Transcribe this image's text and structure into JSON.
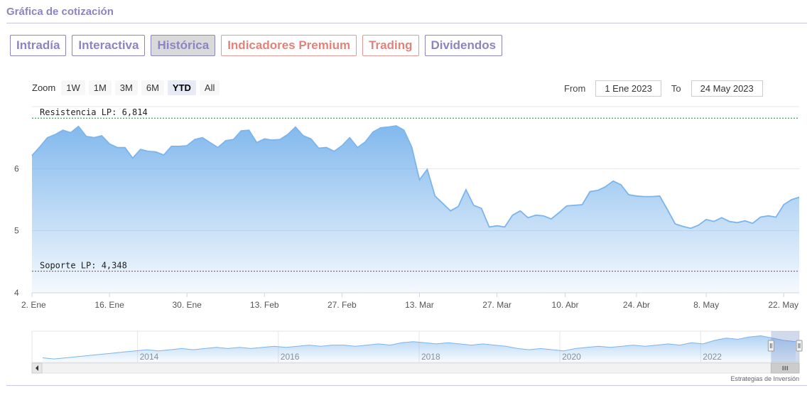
{
  "section_title": "Gráfica de cotización",
  "tabs": [
    {
      "label": "Intradía",
      "style": "normal"
    },
    {
      "label": "Interactiva",
      "style": "normal"
    },
    {
      "label": "Histórica",
      "style": "active"
    },
    {
      "label": "Indicadores Premium",
      "style": "premium"
    },
    {
      "label": "Trading",
      "style": "premium"
    },
    {
      "label": "Dividendos",
      "style": "normal"
    }
  ],
  "zoom": {
    "label": "Zoom",
    "buttons": [
      "1W",
      "1M",
      "3M",
      "6M",
      "YTD",
      "All"
    ],
    "selected": "YTD"
  },
  "range": {
    "from_label": "From",
    "from_value": "1 Ene 2023",
    "to_label": "To",
    "to_value": "24 May 2023"
  },
  "credit": "Estrategias de Inversión",
  "colors": {
    "accent": "#8b85c1",
    "premium": "#e0847b",
    "series_line": "#7cb5ec",
    "resistance": "#2e7d32",
    "support": "#c62828"
  },
  "chart_data": {
    "type": "area",
    "ylim": [
      4,
      7
    ],
    "y_ticks": [
      4,
      5,
      6
    ],
    "y_tick_labels": [
      "4",
      "5",
      "6"
    ],
    "x_tick_labels": [
      "2. Ene",
      "16. Ene",
      "30. Ene",
      "13. Feb",
      "27. Feb",
      "13. Mar",
      "27. Mar",
      "10. Abr",
      "24. Abr",
      "8. May",
      "22. May"
    ],
    "x_tick_dates": [
      "2023-01-02",
      "2023-01-16",
      "2023-01-30",
      "2023-02-13",
      "2023-02-27",
      "2023-03-13",
      "2023-03-27",
      "2023-04-10",
      "2023-04-24",
      "2023-05-08",
      "2023-05-22"
    ],
    "x_range": [
      "2023-01-02",
      "2023-05-24"
    ],
    "series": [
      {
        "dates": [
          "2023-01-02",
          "2023-01-03",
          "2023-01-04",
          "2023-01-05",
          "2023-01-06",
          "2023-01-09",
          "2023-01-10",
          "2023-01-11",
          "2023-01-12",
          "2023-01-13",
          "2023-01-16",
          "2023-01-17",
          "2023-01-18",
          "2023-01-19",
          "2023-01-20",
          "2023-01-23",
          "2023-01-24",
          "2023-01-25",
          "2023-01-26",
          "2023-01-27",
          "2023-01-30",
          "2023-01-31",
          "2023-02-01",
          "2023-02-02",
          "2023-02-03",
          "2023-02-06",
          "2023-02-07",
          "2023-02-08",
          "2023-02-09",
          "2023-02-10",
          "2023-02-13",
          "2023-02-14",
          "2023-02-15",
          "2023-02-16",
          "2023-02-17",
          "2023-02-20",
          "2023-02-21",
          "2023-02-22",
          "2023-02-23",
          "2023-02-24",
          "2023-02-27",
          "2023-02-28",
          "2023-03-01",
          "2023-03-02",
          "2023-03-03",
          "2023-03-06",
          "2023-03-07",
          "2023-03-08",
          "2023-03-09",
          "2023-03-10",
          "2023-03-13",
          "2023-03-14",
          "2023-03-15",
          "2023-03-16",
          "2023-03-17",
          "2023-03-20",
          "2023-03-21",
          "2023-03-22",
          "2023-03-23",
          "2023-03-24",
          "2023-03-27",
          "2023-03-28",
          "2023-03-29",
          "2023-03-30",
          "2023-03-31",
          "2023-04-03",
          "2023-04-04",
          "2023-04-05",
          "2023-04-06",
          "2023-04-11",
          "2023-04-12",
          "2023-04-13",
          "2023-04-14",
          "2023-04-17",
          "2023-04-18",
          "2023-04-19",
          "2023-04-20",
          "2023-04-21",
          "2023-04-24",
          "2023-04-25",
          "2023-04-26",
          "2023-04-27",
          "2023-04-28",
          "2023-05-02",
          "2023-05-03",
          "2023-05-04",
          "2023-05-05",
          "2023-05-08",
          "2023-05-09",
          "2023-05-10",
          "2023-05-11",
          "2023-05-12",
          "2023-05-15",
          "2023-05-16",
          "2023-05-17",
          "2023-05-18",
          "2023-05-19",
          "2023-05-22",
          "2023-05-23",
          "2023-05-24"
        ],
        "values": [
          6.21,
          6.35,
          6.5,
          6.55,
          6.62,
          6.58,
          6.68,
          6.52,
          6.5,
          6.53,
          6.4,
          6.34,
          6.34,
          6.17,
          6.31,
          6.28,
          6.27,
          6.22,
          6.36,
          6.36,
          6.37,
          6.47,
          6.5,
          6.42,
          6.34,
          6.45,
          6.47,
          6.61,
          6.62,
          6.42,
          6.48,
          6.46,
          6.47,
          6.55,
          6.67,
          6.53,
          6.48,
          6.33,
          6.34,
          6.28,
          6.37,
          6.5,
          6.34,
          6.43,
          6.59,
          6.66,
          6.67,
          6.69,
          6.62,
          6.35,
          5.82,
          5.99,
          5.56,
          5.44,
          5.32,
          5.39,
          5.66,
          5.41,
          5.36,
          5.06,
          5.08,
          5.06,
          5.25,
          5.32,
          5.21,
          5.25,
          5.24,
          5.19,
          5.29,
          5.4,
          5.41,
          5.42,
          5.63,
          5.65,
          5.71,
          5.8,
          5.74,
          5.58,
          5.56,
          5.55,
          5.55,
          5.56,
          5.34,
          5.11,
          5.07,
          5.04,
          5.09,
          5.18,
          5.15,
          5.21,
          5.15,
          5.13,
          5.16,
          5.12,
          5.22,
          5.24,
          5.22,
          5.42,
          5.5,
          5.54
        ]
      }
    ],
    "reference_lines": [
      {
        "label": "Resistencia LP: 6,814",
        "value": 6.814,
        "color": "#2e7d32"
      },
      {
        "label": "Soporte LP: 4,348",
        "value": 4.348,
        "color": "#c62828"
      }
    ],
    "navigator": {
      "tick_labels": [
        "2014",
        "2016",
        "2018",
        "2020",
        "2022"
      ],
      "tick_years": [
        2014,
        2016,
        2018,
        2020,
        2022
      ],
      "x_range": [
        2012.5,
        2023.4
      ],
      "selected_range": [
        2023.0,
        2023.4
      ],
      "values": [
        3.9,
        3.8,
        3.9,
        4.0,
        4.1,
        4.2,
        4.3,
        4.4,
        4.5,
        4.6,
        4.5,
        4.6,
        4.7,
        4.6,
        4.7,
        4.8,
        4.7,
        4.8,
        4.7,
        4.8,
        4.9,
        4.8,
        4.9,
        5.0,
        4.9,
        5.0,
        5.0,
        4.9,
        5.0,
        5.1,
        5.0,
        5.2,
        5.3,
        5.2,
        5.1,
        5.2,
        5.1,
        5.0,
        5.1,
        5.0,
        4.9,
        4.7,
        4.6,
        4.7,
        4.6,
        4.5,
        4.7,
        4.8,
        4.9,
        4.8,
        4.9,
        5.0,
        4.9,
        5.0,
        5.1,
        5.0,
        5.2,
        5.1,
        5.4,
        5.6,
        5.5,
        5.7,
        5.8,
        5.6,
        5.4,
        5.3
      ]
    }
  }
}
